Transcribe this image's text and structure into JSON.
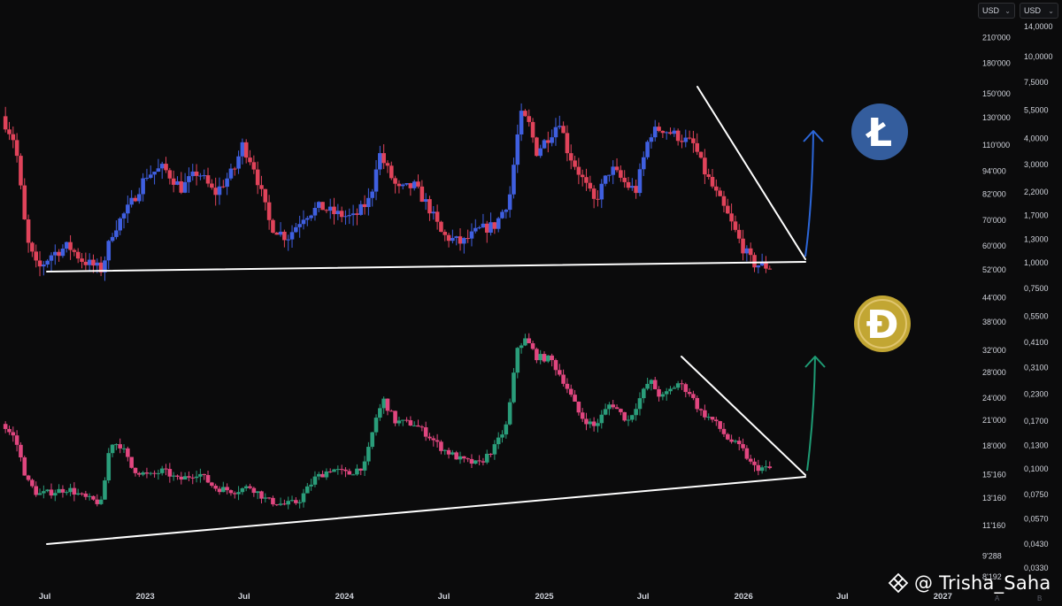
{
  "header": {
    "left_currency": "USD",
    "right_currency": "USD",
    "corner_left": "A",
    "corner_right": "B"
  },
  "watermark": "@ Trisha_Saha",
  "coins": {
    "ltc": {
      "glyph": "Ł",
      "icon": "litecoin-logo",
      "color": "#345d9d"
    },
    "doge": {
      "glyph": "Ð",
      "icon": "dogecoin-logo",
      "color": "#c2a633"
    }
  },
  "colors": {
    "ltc_up": "#3f5fe0",
    "ltc_down": "#e0435a",
    "doge_up": "#2a9d7a",
    "doge_down": "#e0467f",
    "trendline": "#ffffff",
    "ltc_arrow": "#2c66d8",
    "doge_arrow": "#1e9b74"
  },
  "chart_data": [
    {
      "type": "candlestick",
      "name": "LTC",
      "y_scale": "log",
      "ylim": [
        0.033,
        14
      ],
      "y_ticks": [
        {
          "value": 14,
          "label": "14,0000"
        },
        {
          "value": 10,
          "label": "10,0000"
        },
        {
          "value": 7.5,
          "label": "7,5000"
        },
        {
          "value": 5.5,
          "label": "5,5000"
        },
        {
          "value": 4.0,
          "label": "4,0000"
        },
        {
          "value": 3.0,
          "label": "3,0000"
        },
        {
          "value": 2.2,
          "label": "2,2000"
        },
        {
          "value": 1.7,
          "label": "1,7000"
        },
        {
          "value": 1.3,
          "label": "1,3000"
        },
        {
          "value": 1.0,
          "label": "1,0000"
        },
        {
          "value": 0.75,
          "label": "0,7500"
        },
        {
          "value": 0.55,
          "label": "0,5500"
        },
        {
          "value": 0.41,
          "label": "0,4100"
        },
        {
          "value": 0.31,
          "label": "0,3100"
        },
        {
          "value": 0.23,
          "label": "0,2300"
        },
        {
          "value": 0.17,
          "label": "0,1700"
        },
        {
          "value": 0.13,
          "label": "0,1300"
        },
        {
          "value": 0.1,
          "label": "0,1000"
        },
        {
          "value": 0.075,
          "label": "0,0750"
        },
        {
          "value": 0.057,
          "label": "0,0570"
        },
        {
          "value": 0.043,
          "label": "0,0430"
        },
        {
          "value": 0.033,
          "label": "0,0330"
        }
      ],
      "path": [
        [
          "2022-04-20",
          131000
        ],
        [
          "2022-05-15",
          112000
        ],
        [
          "2022-06-05",
          62000
        ],
        [
          "2022-06-25",
          52000
        ],
        [
          "2022-07-20",
          57000
        ],
        [
          "2022-08-20",
          60000
        ],
        [
          "2022-09-15",
          55000
        ],
        [
          "2022-10-20",
          52000
        ],
        [
          "2022-11-10",
          66000
        ],
        [
          "2022-12-10",
          76000
        ],
        [
          "2023-01-10",
          92000
        ],
        [
          "2023-02-10",
          96000
        ],
        [
          "2023-03-15",
          85000
        ],
        [
          "2023-04-15",
          94000
        ],
        [
          "2023-05-15",
          82000
        ],
        [
          "2023-06-20",
          95000
        ],
        [
          "2023-07-05",
          110000
        ],
        [
          "2023-07-25",
          98000
        ],
        [
          "2023-08-25",
          68000
        ],
        [
          "2023-09-25",
          63000
        ],
        [
          "2023-10-25",
          72000
        ],
        [
          "2023-11-25",
          76000
        ],
        [
          "2023-12-20",
          73000
        ],
        [
          "2024-01-25",
          71000
        ],
        [
          "2024-02-25",
          80000
        ],
        [
          "2024-03-10",
          106000
        ],
        [
          "2024-03-25",
          96000
        ],
        [
          "2024-04-15",
          84000
        ],
        [
          "2024-05-15",
          86000
        ],
        [
          "2024-06-10",
          76000
        ],
        [
          "2024-07-05",
          64000
        ],
        [
          "2024-08-10",
          61000
        ],
        [
          "2024-09-10",
          66000
        ],
        [
          "2024-10-10",
          68000
        ],
        [
          "2024-11-05",
          80000
        ],
        [
          "2024-11-25",
          132000
        ],
        [
          "2024-12-10",
          126000
        ],
        [
          "2024-12-25",
          106000
        ],
        [
          "2025-01-20",
          118000
        ],
        [
          "2025-02-05",
          128000
        ],
        [
          "2025-02-20",
          106000
        ],
        [
          "2025-03-15",
          92000
        ],
        [
          "2025-04-10",
          78000
        ],
        [
          "2025-05-10",
          96000
        ],
        [
          "2025-06-10",
          86000
        ],
        [
          "2025-06-25",
          84000
        ],
        [
          "2025-07-20",
          118000
        ],
        [
          "2025-08-10",
          122000
        ],
        [
          "2025-09-10",
          116000
        ],
        [
          "2025-10-10",
          110000
        ],
        [
          "2025-10-25",
          96000
        ],
        [
          "2025-11-15",
          84000
        ],
        [
          "2025-12-10",
          72000
        ],
        [
          "2026-01-05",
          60000
        ],
        [
          "2026-01-25",
          54000
        ],
        [
          "2026-02-20",
          53000
        ]
      ]
    },
    {
      "type": "candlestick",
      "name": "DOGE",
      "y_scale": "log",
      "ylim": [
        8192,
        250000
      ],
      "y_ticks": [
        {
          "value": 210000,
          "label": "210'000"
        },
        {
          "value": 180000,
          "label": "180'000"
        },
        {
          "value": 150000,
          "label": "150'000"
        },
        {
          "value": 130000,
          "label": "130'000"
        },
        {
          "value": 110000,
          "label": "110'000"
        },
        {
          "value": 94000,
          "label": "94'000"
        },
        {
          "value": 82000,
          "label": "82'000"
        },
        {
          "value": 70000,
          "label": "70'000"
        },
        {
          "value": 60000,
          "label": "60'000"
        },
        {
          "value": 52000,
          "label": "52'000"
        },
        {
          "value": 44000,
          "label": "44'000"
        },
        {
          "value": 38000,
          "label": "38'000"
        },
        {
          "value": 32000,
          "label": "32'000"
        },
        {
          "value": 28000,
          "label": "28'000"
        },
        {
          "value": 24000,
          "label": "24'000"
        },
        {
          "value": 21000,
          "label": "21'000"
        },
        {
          "value": 18000,
          "label": "18'000"
        },
        {
          "value": 15160,
          "label": "15'160"
        },
        {
          "value": 13160,
          "label": "13'160"
        },
        {
          "value": 11160,
          "label": "11'160"
        },
        {
          "value": 9288,
          "label": "9'288"
        },
        {
          "value": 8192,
          "label": "8'192"
        }
      ],
      "path": [
        [
          "2022-04-20",
          0.165
        ],
        [
          "2022-05-15",
          0.14
        ],
        [
          "2022-06-05",
          0.088
        ],
        [
          "2022-06-25",
          0.075
        ],
        [
          "2022-07-20",
          0.077
        ],
        [
          "2022-08-20",
          0.08
        ],
        [
          "2022-09-20",
          0.072
        ],
        [
          "2022-10-20",
          0.068
        ],
        [
          "2022-11-05",
          0.135
        ],
        [
          "2022-11-25",
          0.13
        ],
        [
          "2022-12-15",
          0.1
        ],
        [
          "2023-01-15",
          0.092
        ],
        [
          "2023-02-10",
          0.098
        ],
        [
          "2023-03-10",
          0.088
        ],
        [
          "2023-04-15",
          0.096
        ],
        [
          "2023-05-15",
          0.081
        ],
        [
          "2023-06-20",
          0.078
        ],
        [
          "2023-07-20",
          0.082
        ],
        [
          "2023-08-20",
          0.07
        ],
        [
          "2023-09-20",
          0.067
        ],
        [
          "2023-10-15",
          0.069
        ],
        [
          "2023-11-15",
          0.09
        ],
        [
          "2023-12-15",
          0.1
        ],
        [
          "2024-01-15",
          0.094
        ],
        [
          "2024-02-15",
          0.105
        ],
        [
          "2024-03-05",
          0.175
        ],
        [
          "2024-03-20",
          0.215
        ],
        [
          "2024-04-10",
          0.17
        ],
        [
          "2024-05-15",
          0.165
        ],
        [
          "2024-06-10",
          0.145
        ],
        [
          "2024-07-05",
          0.125
        ],
        [
          "2024-08-10",
          0.11
        ],
        [
          "2024-09-10",
          0.105
        ],
        [
          "2024-10-10",
          0.128
        ],
        [
          "2024-11-01",
          0.165
        ],
        [
          "2024-11-20",
          0.39
        ],
        [
          "2024-12-05",
          0.425
        ],
        [
          "2024-12-25",
          0.35
        ],
        [
          "2025-01-20",
          0.34
        ],
        [
          "2025-02-15",
          0.26
        ],
        [
          "2025-03-15",
          0.18
        ],
        [
          "2025-04-10",
          0.16
        ],
        [
          "2025-05-10",
          0.21
        ],
        [
          "2025-06-10",
          0.17
        ],
        [
          "2025-07-20",
          0.27
        ],
        [
          "2025-08-10",
          0.22
        ],
        [
          "2025-09-10",
          0.26
        ],
        [
          "2025-10-01",
          0.235
        ],
        [
          "2025-10-20",
          0.19
        ],
        [
          "2025-11-15",
          0.17
        ],
        [
          "2025-12-10",
          0.14
        ],
        [
          "2026-01-05",
          0.125
        ],
        [
          "2026-01-25",
          0.102
        ],
        [
          "2026-02-20",
          0.1
        ]
      ]
    }
  ],
  "x_axis": {
    "range": [
      "2022-04-10",
      "2027-02-10"
    ],
    "ticks": [
      {
        "date": "2022-07-01",
        "label": "Jul"
      },
      {
        "date": "2023-01-01",
        "label": "2023"
      },
      {
        "date": "2023-07-01",
        "label": "Jul"
      },
      {
        "date": "2024-01-01",
        "label": "2024"
      },
      {
        "date": "2024-07-01",
        "label": "Jul"
      },
      {
        "date": "2025-01-01",
        "label": "2025"
      },
      {
        "date": "2025-07-01",
        "label": "Jul"
      },
      {
        "date": "2026-01-01",
        "label": "2026"
      },
      {
        "date": "2026-07-01",
        "label": "Jul"
      },
      {
        "date": "2027-01-01",
        "label": "2027"
      }
    ]
  }
}
